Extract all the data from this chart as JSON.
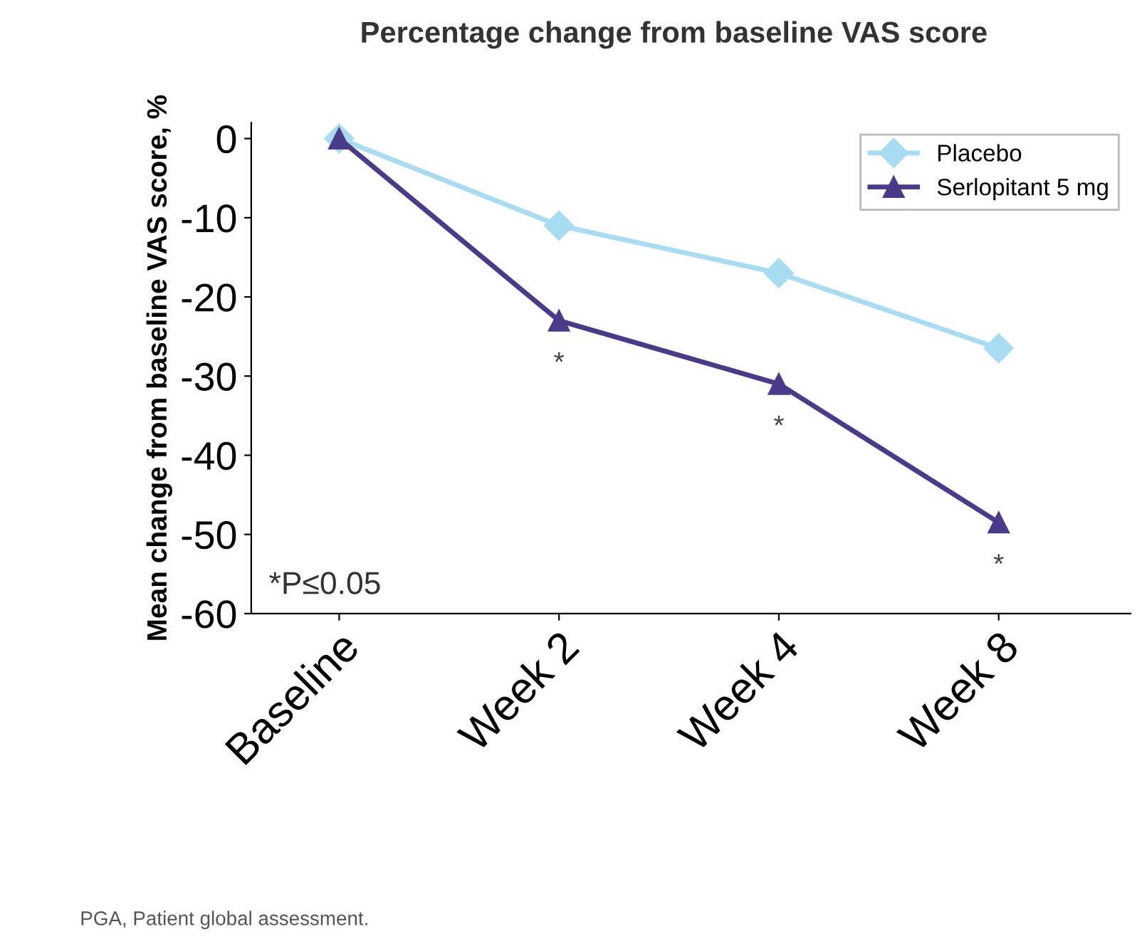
{
  "chart_data": {
    "type": "line",
    "title": "Percentage change from baseline VAS score",
    "ylabel": "Mean change from baseline VAS score, %",
    "categories": [
      "Baseline",
      "Week 2",
      "Week 4",
      "Week 8"
    ],
    "series": [
      {
        "name": "Placebo",
        "color": "#a8dcf2",
        "marker": "diamond",
        "values": [
          0,
          -11,
          -17,
          -26.5
        ]
      },
      {
        "name": "Serlopitant 5 mg",
        "color": "#4a3a8a",
        "marker": "triangle",
        "values": [
          0,
          -23,
          -31,
          -48.5
        ]
      }
    ],
    "ylim": [
      -60,
      2
    ],
    "yticks": [
      0,
      -10,
      -20,
      -30,
      -40,
      -50,
      -60
    ],
    "grid": false,
    "legend": "top right",
    "line_style": "solid",
    "annotations": [
      "*",
      "*",
      "*",
      "*P≤0.05",
      "PGA, Patient global assessment."
    ]
  }
}
